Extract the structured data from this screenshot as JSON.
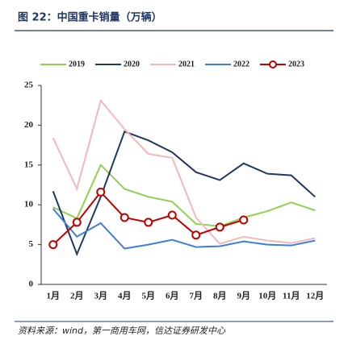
{
  "chart_data": {
    "type": "line",
    "title": "图 22：中国重卡销量（万辆）",
    "source": "资料来源：wind，第一商用车网，信达证券研发中心",
    "categories": [
      "1月",
      "2月",
      "3月",
      "4月",
      "5月",
      "6月",
      "7月",
      "8月",
      "9月",
      "10月",
      "11月",
      "12月"
    ],
    "ylim": [
      0,
      25
    ],
    "yticks": [
      0,
      5,
      10,
      15,
      20,
      25
    ],
    "grid": false,
    "legend": "top",
    "series": [
      {
        "name": "2019",
        "color": "#92d050",
        "values": [
          9.7,
          8.3,
          15,
          12,
          11,
          10.4,
          7.6,
          7.3,
          8.4,
          9.2,
          10.3,
          9.3
        ]
      },
      {
        "name": "2020",
        "color": "#203864",
        "values": [
          11.7,
          3.8,
          11,
          19.2,
          18.1,
          16.6,
          14.1,
          13.1,
          15.2,
          13.9,
          13.7,
          11
        ]
      },
      {
        "name": "2021",
        "color": "#f4b8b8",
        "values": [
          18.4,
          12,
          23.1,
          19.5,
          16.4,
          15.9,
          8.4,
          5.1,
          6,
          5.5,
          5.2,
          5.8
        ]
      },
      {
        "name": "2022",
        "color": "#3c7fe0",
        "values": [
          9.5,
          6,
          7.7,
          4.5,
          5,
          5.6,
          4.7,
          4.8,
          5.4,
          5,
          4.9,
          5.5
        ]
      },
      {
        "name": "2023",
        "color": "#c00000",
        "marker": "circle",
        "values": [
          5,
          7.8,
          11.6,
          8.4,
          7.8,
          8.7,
          6.2,
          7.2,
          8.1,
          null,
          null,
          null
        ]
      }
    ]
  }
}
